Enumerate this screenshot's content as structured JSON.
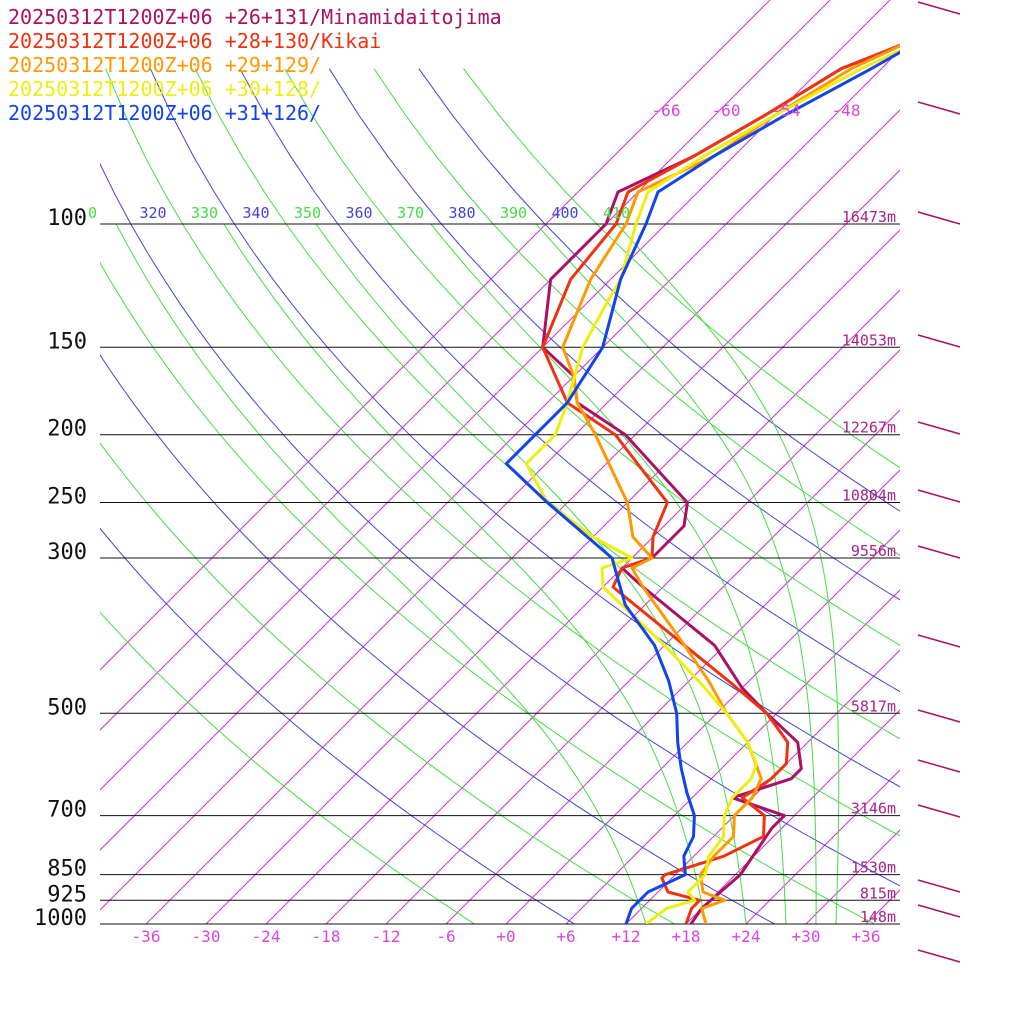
{
  "legend": [
    {
      "text": "20250312T1200Z+06 +26+131/Minamidaitojima",
      "color": "#aa1166"
    },
    {
      "text": "20250312T1200Z+06 +28+130/Kikai",
      "color": "#ee3311"
    },
    {
      "text": "20250312T1200Z+06 +29+129/",
      "color": "#ff9900"
    },
    {
      "text": "20250312T1200Z+06 +30+128/",
      "color": "#eeee11"
    },
    {
      "text": "20250312T1200Z+06 +31+126/",
      "color": "#1144ee"
    }
  ],
  "chart_data": {
    "type": "line",
    "title": "",
    "pressure_levels": [
      100,
      150,
      200,
      250,
      300,
      500,
      700,
      850,
      925,
      1000
    ],
    "pressure_labels": [
      "100",
      "150",
      "200",
      "250",
      "300",
      "500",
      "700",
      "850",
      "925",
      "1000"
    ],
    "heights": [
      "16473m",
      "14053m",
      "12267m",
      "10804m",
      "9556m",
      "5817m",
      "3146m",
      "1530m",
      "815m",
      "148m"
    ],
    "temperature_ticks": [
      "-36",
      "-30",
      "-24",
      "-18",
      "-12",
      "-6",
      "+0",
      "+6",
      "+12",
      "+18",
      "+24",
      "+30",
      "+36"
    ],
    "temperature_tick_values": [
      -36,
      -30,
      -24,
      -18,
      -12,
      -6,
      0,
      6,
      12,
      18,
      24,
      30,
      36
    ],
    "upper_temperature_ticks": [
      "-66",
      "-60",
      "-54",
      "-48"
    ],
    "theta_labels": [
      {
        "text": "0",
        "color": "#44dd44"
      },
      {
        "text": "320",
        "color": "#4444dd"
      },
      {
        "text": "330",
        "color": "#44dd44"
      },
      {
        "text": "340",
        "color": "#4444dd"
      },
      {
        "text": "350",
        "color": "#44dd44"
      },
      {
        "text": "360",
        "color": "#4444dd"
      },
      {
        "text": "370",
        "color": "#44dd44"
      },
      {
        "text": "380",
        "color": "#4444dd"
      },
      {
        "text": "390",
        "color": "#44dd44"
      },
      {
        "text": "400",
        "color": "#4444dd"
      },
      {
        "text": "410",
        "color": "#44dd44"
      }
    ],
    "isotherm_values": [
      -66,
      -60,
      -54,
      -48,
      -42,
      -36,
      -30,
      -24,
      -18,
      -12,
      -6,
      0,
      6,
      12,
      18,
      24,
      30,
      36,
      42,
      48,
      54,
      60
    ],
    "dry_adiabat_theta": [
      270,
      280,
      290,
      300,
      310,
      320,
      330,
      340,
      350,
      360,
      370,
      380,
      390,
      400,
      410
    ],
    "moist_adiabat_start": [
      14,
      20,
      24,
      28,
      31,
      33
    ],
    "series": [
      {
        "name": "20250312T1200Z+06 +26+131/Minamidaitojima",
        "color": "#aa1166",
        "points": [
          [
            1000,
            18.5
          ],
          [
            950,
            18
          ],
          [
            850,
            18.5
          ],
          [
            730,
            17
          ],
          [
            700,
            17
          ],
          [
            660,
            10
          ],
          [
            620,
            14
          ],
          [
            600,
            14
          ],
          [
            550,
            11
          ],
          [
            500,
            5
          ],
          [
            460,
            0
          ],
          [
            400,
            -7
          ],
          [
            330,
            -20
          ],
          [
            310,
            -24
          ],
          [
            300,
            -22
          ],
          [
            270,
            -22
          ],
          [
            250,
            -24
          ],
          [
            200,
            -37
          ],
          [
            180,
            -45
          ],
          [
            165,
            -48
          ],
          [
            150,
            -54
          ],
          [
            120,
            -60
          ],
          [
            100,
            -60
          ],
          [
            90,
            -62
          ],
          [
            80,
            -58
          ],
          [
            70,
            -55
          ],
          [
            60,
            -52
          ],
          [
            55,
            -48
          ]
        ]
      },
      {
        "name": "20250312T1200Z+06 +28+130/Kikai",
        "color": "#ee3311",
        "points": [
          [
            1000,
            18
          ],
          [
            950,
            17
          ],
          [
            925,
            17
          ],
          [
            900,
            13
          ],
          [
            860,
            11
          ],
          [
            850,
            11
          ],
          [
            800,
            15
          ],
          [
            750,
            17
          ],
          [
            700,
            15
          ],
          [
            660,
            11
          ],
          [
            620,
            12
          ],
          [
            590,
            12
          ],
          [
            550,
            10
          ],
          [
            500,
            5
          ],
          [
            450,
            -2
          ],
          [
            400,
            -10
          ],
          [
            330,
            -23
          ],
          [
            310,
            -24
          ],
          [
            300,
            -22
          ],
          [
            280,
            -24
          ],
          [
            250,
            -26
          ],
          [
            200,
            -38
          ],
          [
            180,
            -46
          ],
          [
            150,
            -54
          ],
          [
            120,
            -58
          ],
          [
            100,
            -59
          ],
          [
            90,
            -61
          ],
          [
            80,
            -58
          ],
          [
            70,
            -55
          ],
          [
            60,
            -52
          ],
          [
            55,
            -48
          ]
        ]
      },
      {
        "name": "20250312T1200Z+06 +29+129/",
        "color": "#ff9900",
        "points": [
          [
            1000,
            20
          ],
          [
            950,
            18
          ],
          [
            925,
            19.5
          ],
          [
            900,
            16.5
          ],
          [
            850,
            14.5
          ],
          [
            800,
            14
          ],
          [
            750,
            14
          ],
          [
            700,
            12
          ],
          [
            660,
            12
          ],
          [
            620,
            11
          ],
          [
            550,
            6
          ],
          [
            500,
            1
          ],
          [
            450,
            -4
          ],
          [
            400,
            -10
          ],
          [
            330,
            -20
          ],
          [
            310,
            -23
          ],
          [
            300,
            -22
          ],
          [
            280,
            -26
          ],
          [
            250,
            -30
          ],
          [
            200,
            -40
          ],
          [
            180,
            -45
          ],
          [
            165,
            -48
          ],
          [
            150,
            -52
          ],
          [
            120,
            -56
          ],
          [
            100,
            -58
          ],
          [
            90,
            -60
          ],
          [
            80,
            -56
          ],
          [
            70,
            -54
          ],
          [
            60,
            -51
          ],
          [
            55,
            -48
          ]
        ]
      },
      {
        "name": "20250312T1200Z+06 +30+128/",
        "color": "#eeee11",
        "points": [
          [
            1000,
            14
          ],
          [
            950,
            14.5
          ],
          [
            925,
            16.5
          ],
          [
            900,
            15
          ],
          [
            850,
            15
          ],
          [
            800,
            13.5
          ],
          [
            750,
            13
          ],
          [
            700,
            11
          ],
          [
            660,
            10
          ],
          [
            620,
            10
          ],
          [
            590,
            9
          ],
          [
            550,
            6
          ],
          [
            500,
            1
          ],
          [
            450,
            -5
          ],
          [
            400,
            -12
          ],
          [
            330,
            -24
          ],
          [
            310,
            -26
          ],
          [
            300,
            -24
          ],
          [
            280,
            -30
          ],
          [
            250,
            -38
          ],
          [
            220,
            -44
          ],
          [
            200,
            -44
          ],
          [
            180,
            -46
          ],
          [
            150,
            -50
          ],
          [
            130,
            -52
          ],
          [
            120,
            -53
          ],
          [
            100,
            -57
          ],
          [
            90,
            -59
          ],
          [
            80,
            -57
          ],
          [
            70,
            -54
          ],
          [
            60,
            -50
          ],
          [
            55,
            -47
          ]
        ]
      },
      {
        "name": "20250312T1200Z+06 +31+126/",
        "color": "#1144ee",
        "points": [
          [
            1000,
            12
          ],
          [
            950,
            11
          ],
          [
            925,
            11
          ],
          [
            900,
            11
          ],
          [
            850,
            13
          ],
          [
            800,
            11
          ],
          [
            750,
            10
          ],
          [
            700,
            8
          ],
          [
            650,
            5
          ],
          [
            600,
            2
          ],
          [
            550,
            -1
          ],
          [
            500,
            -4
          ],
          [
            450,
            -8
          ],
          [
            400,
            -13
          ],
          [
            350,
            -20
          ],
          [
            300,
            -26
          ],
          [
            250,
            -38
          ],
          [
            220,
            -46
          ],
          [
            200,
            -46
          ],
          [
            180,
            -46
          ],
          [
            150,
            -48
          ],
          [
            120,
            -53
          ],
          [
            100,
            -56
          ],
          [
            90,
            -58
          ],
          [
            80,
            -56
          ],
          [
            70,
            -53
          ],
          [
            60,
            -49
          ],
          [
            55,
            -47
          ]
        ]
      }
    ]
  }
}
